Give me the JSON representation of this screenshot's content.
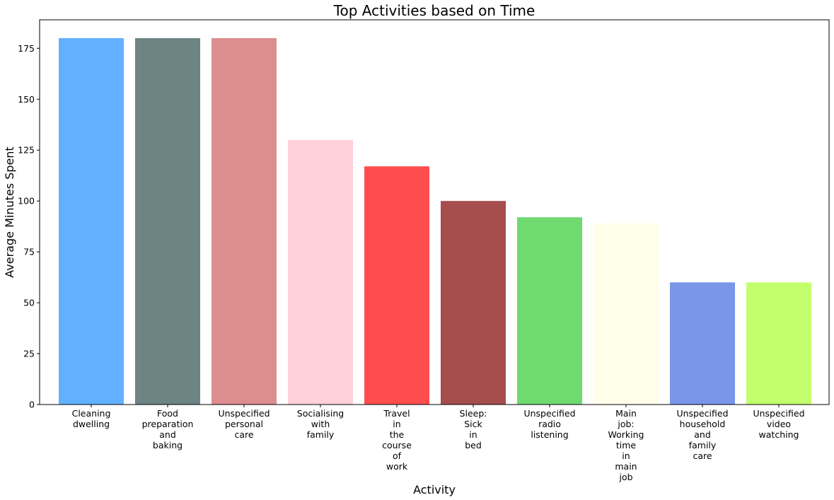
{
  "chart_data": {
    "type": "bar",
    "title": "Top Activities based on Time",
    "xlabel": "Activity",
    "ylabel": "Average Minutes Spent",
    "ylim": [
      0,
      189
    ],
    "yticks": [
      0,
      25,
      50,
      75,
      100,
      125,
      150,
      175
    ],
    "grid": false,
    "categories": [
      "Cleaning dwelling",
      "Food preparation and baking",
      "Unspecified personal care",
      "Socialising with family",
      "Travel in the course of work",
      "Sleep: Sick in bed",
      "Unspecified radio listening",
      "Main job: Working time in main job",
      "Unspecified household and family care",
      "Unspecified video watching"
    ],
    "values": [
      180,
      180,
      180,
      130,
      117,
      100,
      92,
      89,
      60,
      60
    ],
    "colors": [
      "#62b0ff",
      "#6d8384",
      "#dc8d8d",
      "#ffd1d9",
      "#ff4d4d",
      "#a64d4d",
      "#6fda6f",
      "#ffffe9",
      "#7a96e9",
      "#c3ff6d"
    ]
  }
}
